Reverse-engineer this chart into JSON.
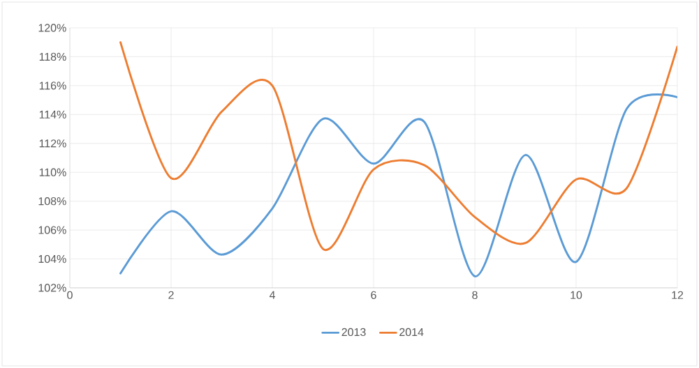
{
  "chart_data": {
    "type": "line",
    "x": [
      1,
      2,
      3,
      4,
      5,
      6,
      7,
      8,
      9,
      10,
      11,
      12
    ],
    "series": [
      {
        "name": "2013",
        "color": "#5b9bd5",
        "values": [
          103.0,
          107.3,
          104.3,
          107.5,
          113.7,
          110.6,
          113.5,
          102.8,
          111.2,
          103.8,
          114.4,
          115.2
        ]
      },
      {
        "name": "2014",
        "color": "#ed7d31",
        "values": [
          119.0,
          109.6,
          114.2,
          116.0,
          104.7,
          110.2,
          110.5,
          106.9,
          105.1,
          109.5,
          108.9,
          118.7
        ]
      }
    ],
    "xlim": [
      0,
      12
    ],
    "xticks": [
      0,
      2,
      4,
      6,
      8,
      10,
      12
    ],
    "ylim": [
      102,
      120
    ],
    "yticks": [
      {
        "value": 102,
        "label": "102%"
      },
      {
        "value": 104,
        "label": "104%"
      },
      {
        "value": 106,
        "label": "106%"
      },
      {
        "value": 108,
        "label": "108%"
      },
      {
        "value": 110,
        "label": "110%"
      },
      {
        "value": 112,
        "label": "112%"
      },
      {
        "value": 114,
        "label": "114%"
      },
      {
        "value": 116,
        "label": "116%"
      },
      {
        "value": 118,
        "label": "118%"
      },
      {
        "value": 120,
        "label": "120%"
      }
    ],
    "grid": true,
    "legend": "bottom",
    "marker": "none",
    "line_style": "solid"
  }
}
